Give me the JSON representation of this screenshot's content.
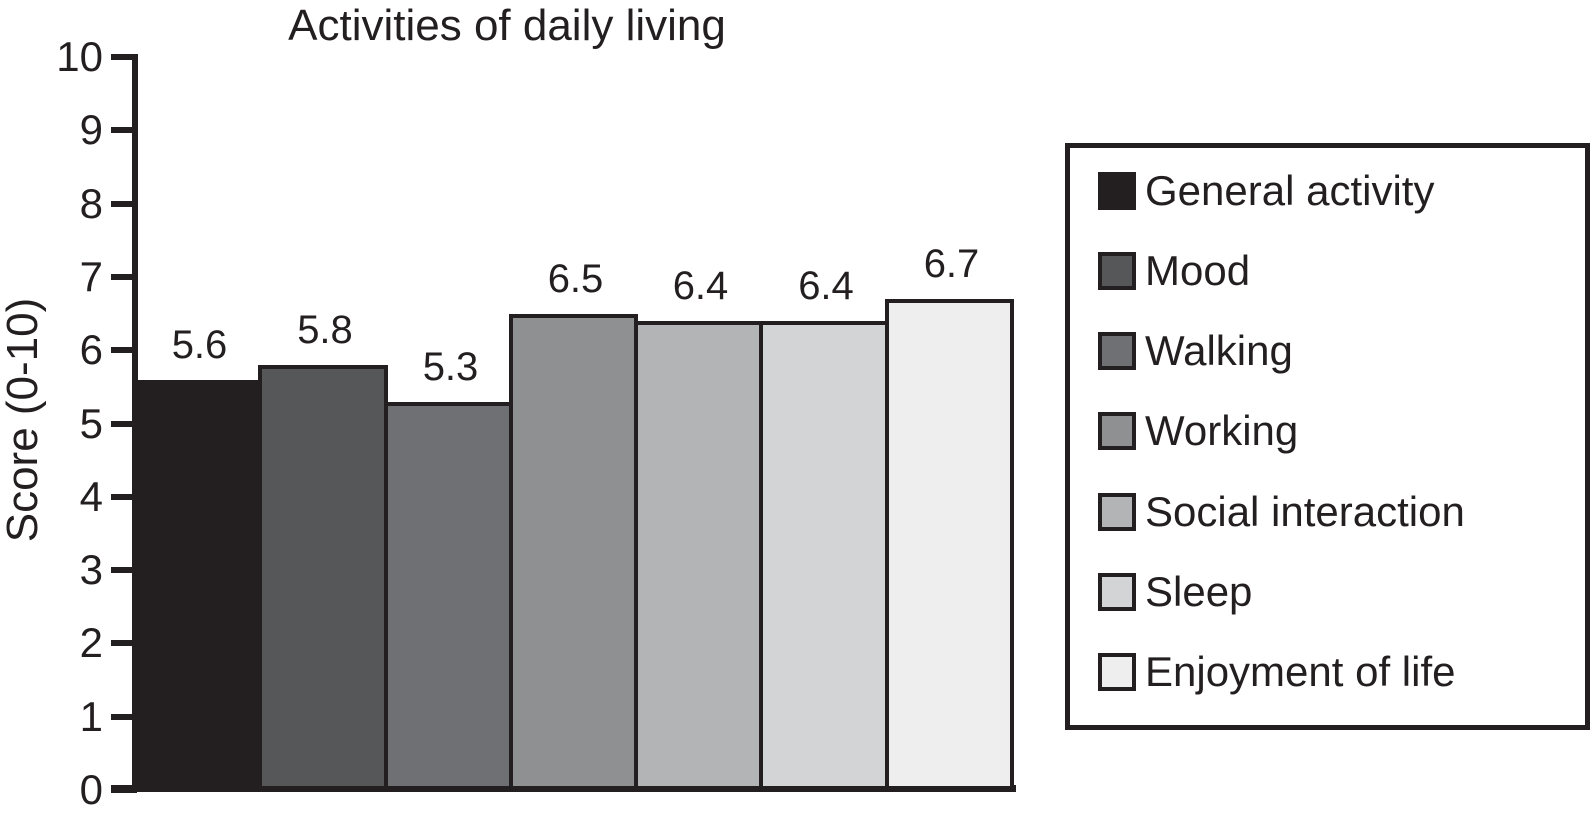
{
  "chart_data": {
    "type": "bar",
    "title": "Activities of daily living",
    "ylabel": "Score (0-10)",
    "ylim": [
      0,
      10
    ],
    "yticks": [
      "0",
      "1",
      "2",
      "3",
      "4",
      "5",
      "6",
      "7",
      "8",
      "9",
      "10"
    ],
    "categories": [
      "General activity",
      "Mood",
      "Walking",
      "Working",
      "Social interaction",
      "Sleep",
      "Enjoyment of life"
    ],
    "values": [
      5.6,
      5.8,
      5.3,
      6.5,
      6.4,
      6.4,
      6.7
    ],
    "value_labels": [
      "5.6",
      "5.8",
      "5.3",
      "6.5",
      "6.4",
      "6.4",
      "6.7"
    ],
    "bar_colors": [
      "#231f20",
      "#565759",
      "#6f7073",
      "#8e9092",
      "#b3b4b6",
      "#d3d4d5",
      "#eeeeee"
    ],
    "axis_color": "#231f20",
    "grid": false,
    "legend_position": "right",
    "xlabel": ""
  }
}
